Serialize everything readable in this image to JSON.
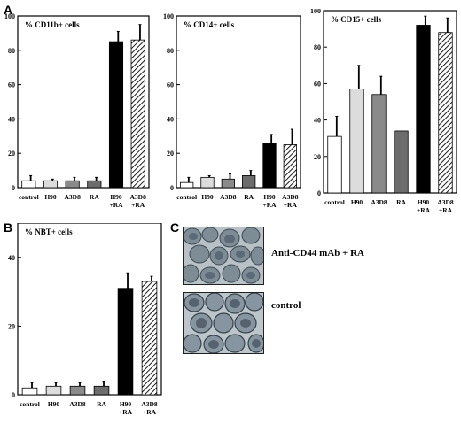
{
  "panels": {
    "a": "A",
    "b": "B",
    "c": "C"
  },
  "patterns": {
    "control": {
      "fill": "#ffffff",
      "hatch": false
    },
    "H90": {
      "fill": "#dcdcdc",
      "hatch": false
    },
    "A3D8": {
      "fill": "#8a8a8a",
      "hatch": false
    },
    "RA": {
      "fill": "#6c6c6c",
      "hatch": false
    },
    "H90+RA": {
      "fill": "#000000",
      "hatch": false
    },
    "A3D8+RA": {
      "fill": "#ffffff",
      "hatch": true
    }
  },
  "chart_data": [
    {
      "type": "bar",
      "title": "% CD11b+ cells",
      "categories": [
        "control",
        "H90",
        "A3D8",
        "RA",
        "H90+RA",
        "A3D8+RA"
      ],
      "tick_labels": [
        [
          "control"
        ],
        [
          "H90"
        ],
        [
          "A3D8"
        ],
        [
          "RA"
        ],
        [
          "H90",
          "+RA"
        ],
        [
          "A3D8",
          "+RA"
        ]
      ],
      "values": [
        4,
        4,
        4,
        4,
        85,
        86
      ],
      "errors": [
        3,
        1,
        2,
        2,
        6,
        9
      ],
      "ylim": [
        0,
        100
      ],
      "yticks": [
        0,
        20,
        40,
        60,
        80,
        100
      ]
    },
    {
      "type": "bar",
      "title": "% CD14+ cells",
      "categories": [
        "control",
        "H90",
        "A3D8",
        "RA",
        "H90+RA",
        "A3D8+RA"
      ],
      "tick_labels": [
        [
          "control"
        ],
        [
          "H90"
        ],
        [
          "A3D8"
        ],
        [
          "RA"
        ],
        [
          "H90",
          "+RA"
        ],
        [
          "A3D8",
          "+RA"
        ]
      ],
      "values": [
        3,
        6,
        5,
        7,
        26,
        25
      ],
      "errors": [
        3,
        1,
        3,
        3,
        5,
        9
      ],
      "ylim": [
        0,
        100
      ],
      "yticks": [
        0,
        20,
        40,
        60,
        80,
        100
      ]
    },
    {
      "type": "bar",
      "title": "% CD15+ cells",
      "categories": [
        "control",
        "H90",
        "A3D8",
        "RA",
        "H90+RA",
        "A3D8+RA"
      ],
      "tick_labels": [
        [
          "control"
        ],
        [
          "H90"
        ],
        [
          "A3D8"
        ],
        [
          "RA"
        ],
        [
          "H90",
          "+RA"
        ],
        [
          "A3D8",
          "+RA"
        ]
      ],
      "values": [
        31,
        57,
        54,
        34,
        92,
        88
      ],
      "errors": [
        11,
        13,
        10,
        0,
        5,
        8
      ],
      "ylim": [
        0,
        100
      ],
      "yticks": [
        0,
        20,
        40,
        60,
        80,
        100
      ]
    },
    {
      "type": "bar",
      "title": "% NBT+ cells",
      "categories": [
        "control",
        "H90",
        "A3D8",
        "RA",
        "H90+RA",
        "A3D8+RA"
      ],
      "tick_labels": [
        [
          "control"
        ],
        [
          "H90"
        ],
        [
          "A3D8"
        ],
        [
          "RA"
        ],
        [
          "H90",
          "+RA"
        ],
        [
          "A3D8",
          "+RA"
        ]
      ],
      "values": [
        2,
        2.5,
        2.5,
        2.5,
        31,
        33
      ],
      "errors": [
        1.5,
        1,
        1,
        1.5,
        4.5,
        1.5
      ],
      "ylim": [
        0,
        50
      ],
      "yticks": [
        0,
        20,
        40
      ]
    }
  ],
  "micrographs": [
    {
      "label": "Anti-CD44 mAb + RA"
    },
    {
      "label": "control"
    }
  ]
}
